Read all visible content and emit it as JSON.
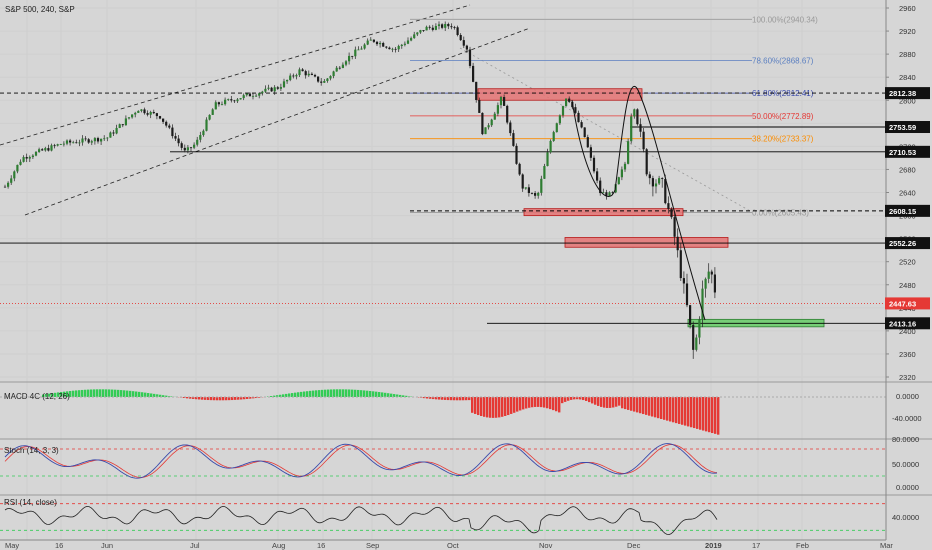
{
  "chart_data": {
    "type": "candlestick",
    "title": "S&P 500, 240, S&P",
    "x_ticks": [
      "May",
      "16",
      "Jun",
      "Jul",
      "Aug",
      "16",
      "Sep",
      "Oct",
      "Nov",
      "Dec",
      "2019",
      "17",
      "Feb",
      "Mar"
    ],
    "price_axis": [
      2960,
      2920,
      2880,
      2840,
      2800,
      2760,
      2720,
      2680,
      2640,
      2600,
      2560,
      2520,
      2480,
      2440,
      2400,
      2360,
      2320
    ],
    "price_path": [
      [
        "May",
        2650
      ],
      [
        "May 8",
        2700
      ],
      [
        "May 16",
        2725
      ],
      [
        "May 24",
        2730
      ],
      [
        "Jun",
        2735
      ],
      [
        "Jun 12",
        2785
      ],
      [
        "Jun 20",
        2772
      ],
      [
        "Jun 28",
        2710
      ],
      [
        "Jul",
        2725
      ],
      [
        "Jul 10",
        2792
      ],
      [
        "Jul 20",
        2805
      ],
      [
        "Aug",
        2822
      ],
      [
        "Aug 8",
        2852
      ],
      [
        "Aug 16",
        2830
      ],
      [
        "Aug 24",
        2870
      ],
      [
        "Sep",
        2905
      ],
      [
        "Sep 10",
        2888
      ],
      [
        "Sep 20",
        2925
      ],
      [
        "Oct",
        2930
      ],
      [
        "Oct 5",
        2890
      ],
      [
        "Oct 11",
        2740
      ],
      [
        "Oct 18",
        2805
      ],
      [
        "Oct 24",
        2650
      ],
      [
        "Oct 29",
        2630
      ],
      [
        "Nov 3",
        2740
      ],
      [
        "Nov 8",
        2810
      ],
      [
        "Nov 14",
        2735
      ],
      [
        "Nov 20",
        2640
      ],
      [
        "Nov 24",
        2635
      ],
      [
        "Nov 29",
        2690
      ],
      [
        "Dec 3",
        2800
      ],
      [
        "Dec 7",
        2670
      ],
      [
        "Dec 12",
        2650
      ],
      [
        "Dec 17",
        2560
      ],
      [
        "Dec 21",
        2430
      ],
      [
        "Dec 24",
        2355
      ],
      [
        "Dec 27",
        2465
      ],
      [
        "Jan 2",
        2510
      ],
      [
        "Jan 4",
        2448
      ]
    ],
    "horizontal_levels": [
      {
        "label": "2812.38",
        "value": 2812.38,
        "style": "dashed",
        "color": "#000000"
      },
      {
        "label": "2753.59",
        "value": 2753.59,
        "style": "solid",
        "color": "#000000"
      },
      {
        "label": "2710.53",
        "value": 2710.53,
        "style": "solid",
        "color": "#000000"
      },
      {
        "label": "2608.15",
        "value": 2608.15,
        "style": "dashed",
        "color": "#000000"
      },
      {
        "label": "2552.26",
        "value": 2552.26,
        "style": "solid",
        "color": "#000000"
      },
      {
        "label": "2447.63",
        "value": 2447.63,
        "style": "dotted",
        "color": "#e53935"
      },
      {
        "label": "2413.16",
        "value": 2413.16,
        "style": "solid",
        "color": "#000000"
      }
    ],
    "fibonacci": [
      {
        "label": "100.00%(2940.34)",
        "value": 2940.34,
        "color": "#999999"
      },
      {
        "label": "78.60%(2868.67)",
        "value": 2868.67,
        "color": "#5b7fc0"
      },
      {
        "label": "61.80%(2812.41)",
        "value": 2812.41,
        "color": "#3949ab"
      },
      {
        "label": "50.00%(2772.89)",
        "value": 2772.89,
        "color": "#e53935"
      },
      {
        "label": "38.20%(2733.37)",
        "value": 2733.37,
        "color": "#fb8c00"
      },
      {
        "label": "0.00%(2605.43)",
        "value": 2605.43,
        "color": "#999999"
      }
    ],
    "zones": [
      {
        "name": "resistance-zone-1",
        "low": 2800,
        "high": 2820,
        "from": "Oct 12",
        "to": "Dec 4",
        "color": "#e57373"
      },
      {
        "name": "resistance-zone-2",
        "low": 2600,
        "high": 2612,
        "from": "Oct 25",
        "to": "Dec 14",
        "color": "#e57373"
      },
      {
        "name": "resistance-zone-3",
        "low": 2545,
        "high": 2562,
        "from": "Nov 6",
        "to": "Dec 30",
        "color": "#e57373"
      },
      {
        "name": "support-zone",
        "low": 2407,
        "high": 2420,
        "from": "Dec 21",
        "to": "Jan 17",
        "color": "#66cc66"
      }
    ],
    "indicators": [
      {
        "label": "MACD 4C (12, 26)",
        "axis": [
          "0.0000",
          "-40.0000"
        ]
      },
      {
        "label": "Stoch (14, 3, 3)",
        "axis": [
          "80.0000",
          "50.0000",
          "0.0000"
        ]
      },
      {
        "label": "RSI (14, close)",
        "axis": [
          "40.0000"
        ]
      }
    ]
  }
}
